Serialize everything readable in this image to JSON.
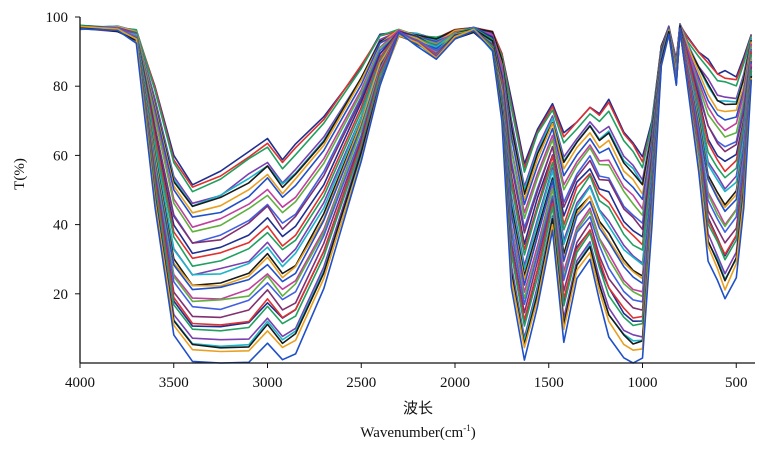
{
  "chart_data": {
    "type": "line",
    "title": "",
    "ylabel": "T(%)",
    "xlabel_cn": "波长",
    "xlabel": "Wavenumber(cm",
    "xlabel_sup": "-1",
    "xlabel_close": ")",
    "x_reversed": true,
    "xlim": [
      4000,
      400
    ],
    "ylim": [
      0,
      100
    ],
    "x_ticks": [
      4000,
      3500,
      3000,
      2500,
      2000,
      1500,
      1000,
      500
    ],
    "y_ticks": [
      20,
      40,
      60,
      80,
      100
    ],
    "grid": false,
    "legend": "none",
    "series_count": 32,
    "colors": [
      "#1f2f8f",
      "#e03030",
      "#20a060",
      "#7a3fb0",
      "#19b5c8",
      "#1a1a1a",
      "#e8a020",
      "#2050c8",
      "#c040a0",
      "#60b040",
      "#4060e0",
      "#803070"
    ],
    "envelope": {
      "description": "FTIR transmittance spectra: all series share the same band shapes; the upper and lower curves bound the family",
      "x": [
        4000,
        3800,
        3700,
        3600,
        3500,
        3400,
        3250,
        3100,
        3000,
        2920,
        2850,
        2700,
        2500,
        2400,
        2300,
        2200,
        2100,
        2000,
        1900,
        1800,
        1750,
        1700,
        1630,
        1560,
        1480,
        1420,
        1350,
        1280,
        1230,
        1180,
        1100,
        1050,
        1000,
        950,
        900,
        860,
        820,
        800,
        760,
        700,
        650,
        600,
        560,
        500,
        460,
        420
      ],
      "upper": [
        97,
        97,
        96,
        80,
        60,
        52,
        55,
        61,
        65,
        59,
        63,
        71,
        86,
        95,
        96,
        95,
        94,
        96,
        97,
        96,
        90,
        76,
        57,
        68,
        75,
        66,
        70,
        74,
        72,
        76,
        67,
        64,
        59,
        70,
        92,
        97,
        88,
        98,
        94,
        90,
        88,
        84,
        84,
        83,
        88,
        95
      ],
      "lower": [
        97,
        96,
        93,
        45,
        8,
        1,
        0,
        0,
        6,
        1,
        3,
        22,
        58,
        80,
        95,
        92,
        88,
        94,
        96,
        90,
        70,
        22,
        1,
        16,
        38,
        6,
        24,
        30,
        18,
        8,
        2,
        0,
        1,
        40,
        86,
        95,
        80,
        96,
        80,
        55,
        30,
        24,
        18,
        25,
        45,
        82
      ]
    }
  }
}
